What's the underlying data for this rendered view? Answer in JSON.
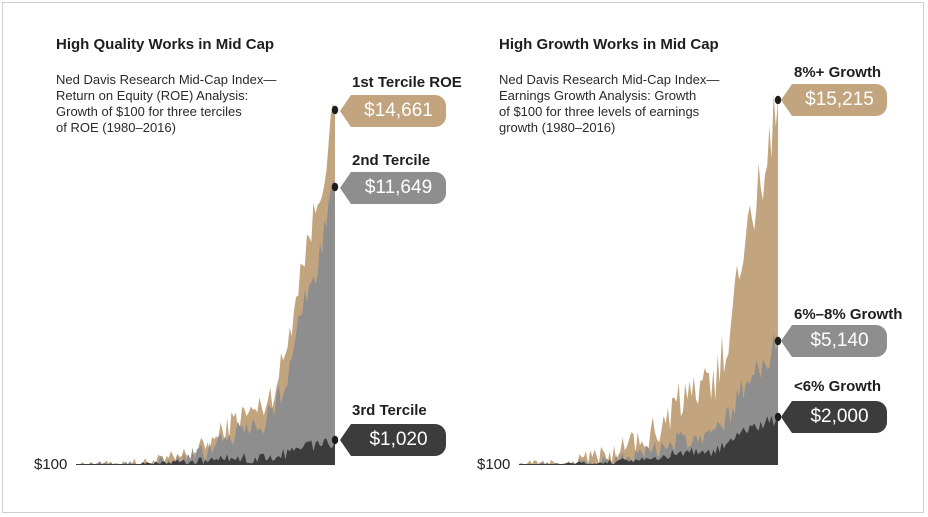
{
  "colors": {
    "top": "#c2a47e",
    "mid": "#8e8e8e",
    "low": "#3c3c3c",
    "dot": "#1c1c1c"
  },
  "chart_data": [
    {
      "type": "area",
      "title": "High Quality Works in Mid Cap",
      "subtitle": "Ned Davis Research Mid-Cap Index—\nReturn on Equity (ROE) Analysis:\nGrowth of $100 for three terciles\nof ROE (1980–2016)",
      "x_range": [
        1980,
        2016
      ],
      "base_label": "$100",
      "series": [
        {
          "name": "1st Tercile ROE",
          "end_value": 14661,
          "end_label": "$14,661",
          "color": "#c2a47e"
        },
        {
          "name": "2nd Tercile",
          "end_value": 11649,
          "end_label": "$11,649",
          "color": "#8e8e8e"
        },
        {
          "name": "3rd Tercile",
          "end_value": 1020,
          "end_label": "$1,020",
          "color": "#3c3c3c"
        }
      ]
    },
    {
      "type": "area",
      "title": "High Growth Works in Mid Cap",
      "subtitle": "Ned Davis Research Mid-Cap Index—\nEarnings Growth Analysis: Growth\nof $100 for three levels of earnings\ngrowth (1980–2016)",
      "x_range": [
        1980,
        2016
      ],
      "base_label": "$100",
      "series": [
        {
          "name": "8%+ Growth",
          "end_value": 15215,
          "end_label": "$15,215",
          "color": "#c2a47e"
        },
        {
          "name": "6%–8% Growth",
          "end_value": 5140,
          "end_label": "$5,140",
          "color": "#8e8e8e"
        },
        {
          "name": "<6% Growth",
          "end_value": 2000,
          "end_label": "$2,000",
          "color": "#3c3c3c"
        }
      ]
    }
  ]
}
